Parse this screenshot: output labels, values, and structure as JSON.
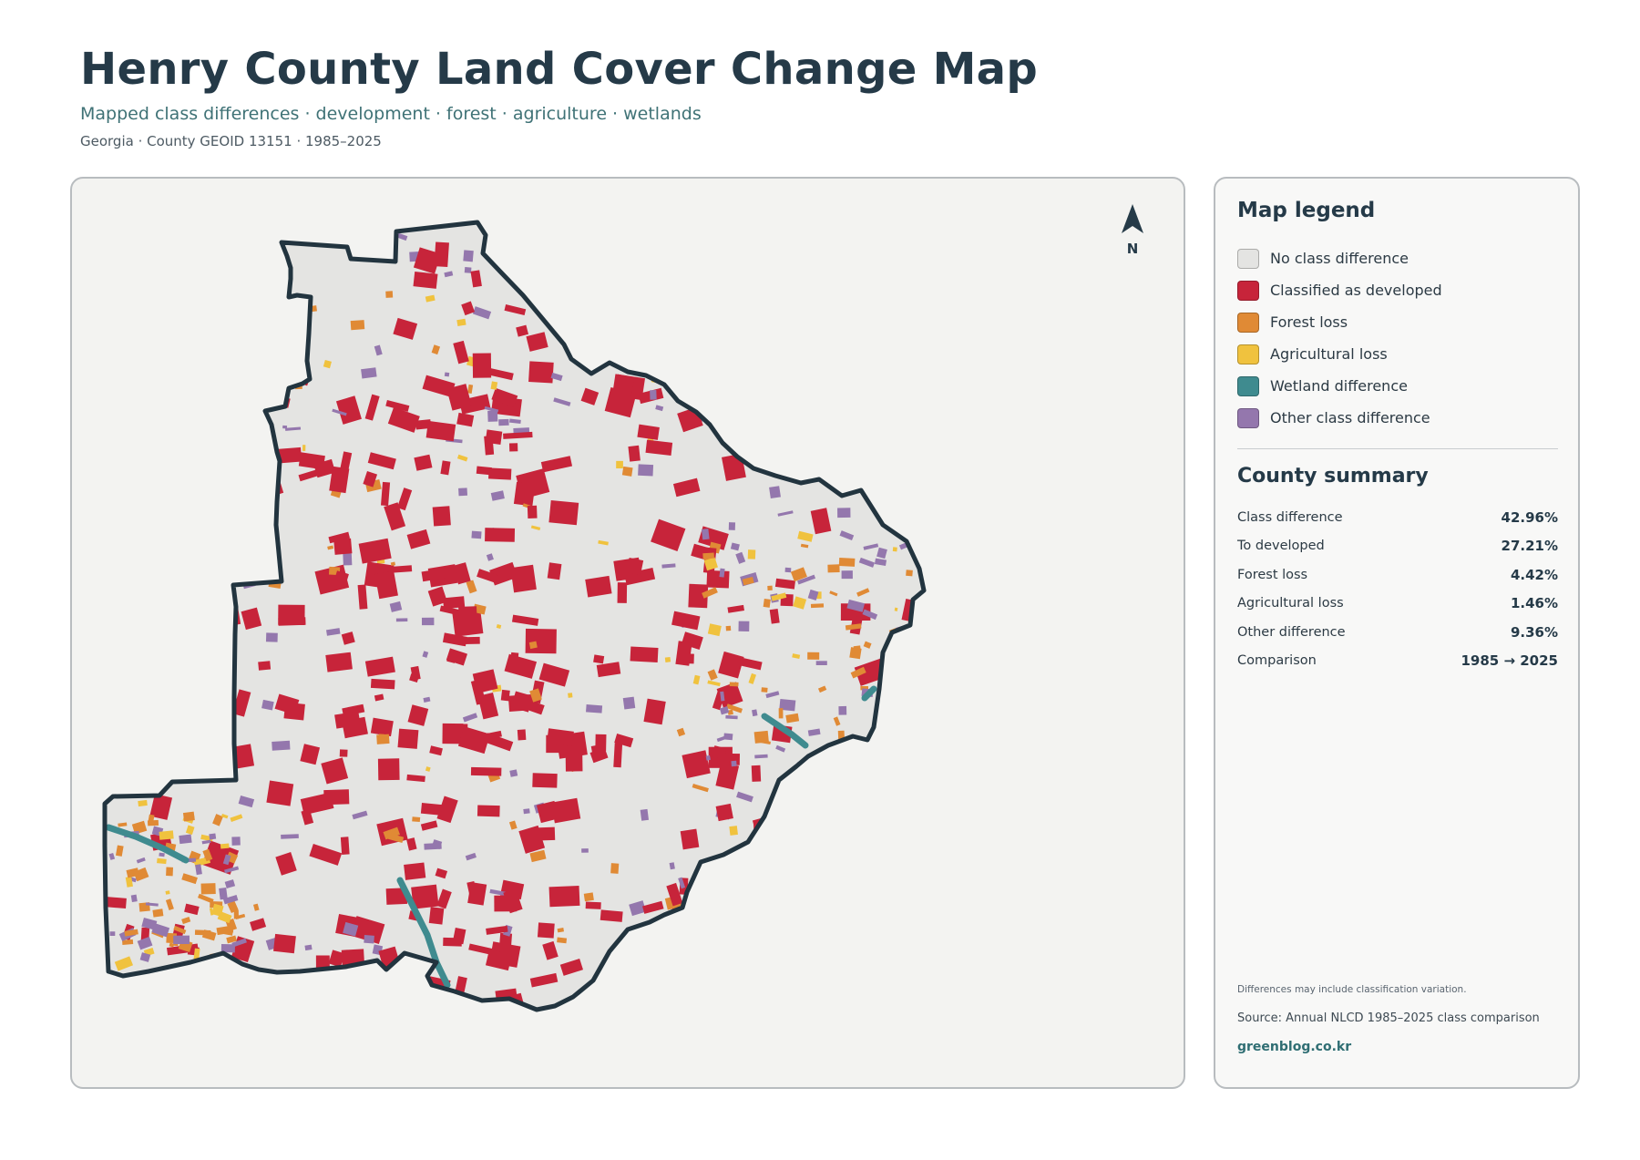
{
  "header": {
    "title": "Henry County Land Cover Change Map",
    "subtitle": "Mapped class differences · development · forest · agriculture · wetlands",
    "meta": "Georgia · County GEOID 13151 · 1985–2025"
  },
  "map": {
    "north_label": "N",
    "colors": {
      "background": "#f3f3f1",
      "no_change": "#e4e4e2",
      "developed": "#c7243a",
      "forest_loss": "#e08a35",
      "agricultural_loss": "#f0c23e",
      "wetland": "#3f8b8f",
      "other": "#9477ad",
      "outline": "#22343f"
    }
  },
  "legend": {
    "title": "Map legend",
    "items": [
      {
        "label": "No class difference",
        "color": "#e4e4e2"
      },
      {
        "label": "Classified as developed",
        "color": "#c7243a"
      },
      {
        "label": "Forest loss",
        "color": "#e08a35"
      },
      {
        "label": "Agricultural loss",
        "color": "#f0c23e"
      },
      {
        "label": "Wetland difference",
        "color": "#3f8b8f"
      },
      {
        "label": "Other class difference",
        "color": "#9477ad"
      }
    ]
  },
  "summary": {
    "title": "County summary",
    "rows": [
      {
        "label": "Class difference",
        "value": "42.96%"
      },
      {
        "label": "To developed",
        "value": "27.21%"
      },
      {
        "label": "Forest loss",
        "value": "4.42%"
      },
      {
        "label": "Agricultural loss",
        "value": "1.46%"
      },
      {
        "label": "Other difference",
        "value": "9.36%"
      },
      {
        "label": "Comparison",
        "value": "1985 → 2025"
      }
    ]
  },
  "footer": {
    "note": "Differences may include classification variation.",
    "source": "Source: Annual NLCD 1985–2025 class comparison",
    "site": "greenblog.co.kr"
  }
}
